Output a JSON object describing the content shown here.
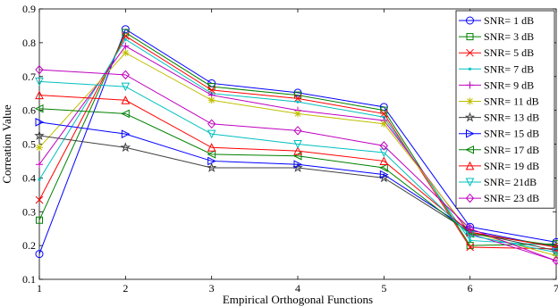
{
  "chart_data": {
    "type": "line",
    "title": "",
    "xlabel": "Empirical Orthogonal Functions",
    "ylabel": "Correation Value",
    "x": [
      1,
      2,
      3,
      4,
      5,
      6,
      7
    ],
    "xlim": [
      1,
      7
    ],
    "ylim": [
      0.1,
      0.9
    ],
    "xticks": [
      "1",
      "2",
      "3",
      "4",
      "5",
      "6",
      "7"
    ],
    "yticks": [
      "0.1",
      "0.2",
      "0.3",
      "0.4",
      "0.5",
      "0.6",
      "0.7",
      "0.8",
      "0.9"
    ],
    "grid": false,
    "legend_position": "top-right",
    "series": [
      {
        "name": "SNR= 1 dB",
        "color": "#0000ff",
        "marker": "circle",
        "values": [
          0.175,
          0.84,
          0.68,
          0.652,
          0.61,
          0.255,
          0.21
        ]
      },
      {
        "name": "SNR= 3 dB",
        "color": "#008000",
        "marker": "square",
        "values": [
          0.275,
          0.83,
          0.67,
          0.645,
          0.6,
          0.2,
          0.205
        ]
      },
      {
        "name": "SNR= 5 dB",
        "color": "#ff0000",
        "marker": "x",
        "values": [
          0.335,
          0.82,
          0.66,
          0.635,
          0.59,
          0.195,
          0.19
        ]
      },
      {
        "name": "SNR= 7 dB",
        "color": "#00bfbf",
        "marker": "point",
        "values": [
          0.395,
          0.81,
          0.65,
          0.625,
          0.58,
          0.215,
          0.2
        ]
      },
      {
        "name": "SNR= 9 dB",
        "color": "#bf00bf",
        "marker": "plus",
        "values": [
          0.44,
          0.79,
          0.645,
          0.6,
          0.57,
          0.235,
          0.155
        ]
      },
      {
        "name": "SNR= 11 dB",
        "color": "#bfbf00",
        "marker": "asterisk",
        "values": [
          0.49,
          0.77,
          0.63,
          0.59,
          0.56,
          0.24,
          0.17
        ]
      },
      {
        "name": "SNR= 13 dB",
        "color": "#404040",
        "marker": "star",
        "values": [
          0.525,
          0.49,
          0.43,
          0.43,
          0.4,
          0.24,
          0.185
        ]
      },
      {
        "name": "SNR= 15 dB",
        "color": "#0000ff",
        "marker": "triangle-right",
        "values": [
          0.565,
          0.53,
          0.45,
          0.44,
          0.41,
          0.245,
          0.195
        ]
      },
      {
        "name": "SNR= 17 dB",
        "color": "#008000",
        "marker": "triangle-left",
        "values": [
          0.605,
          0.59,
          0.47,
          0.465,
          0.43,
          0.235,
          0.2
        ]
      },
      {
        "name": "SNR= 19 dB",
        "color": "#ff0000",
        "marker": "triangle-up",
        "values": [
          0.645,
          0.63,
          0.49,
          0.48,
          0.45,
          0.24,
          0.195
        ]
      },
      {
        "name": "SNR= 21dB",
        "color": "#00bfbf",
        "marker": "triangle-down",
        "values": [
          0.685,
          0.67,
          0.53,
          0.5,
          0.475,
          0.23,
          0.18
        ]
      },
      {
        "name": "SNR= 23 dB",
        "color": "#bf00bf",
        "marker": "diamond",
        "values": [
          0.72,
          0.705,
          0.56,
          0.54,
          0.495,
          0.25,
          0.155
        ]
      }
    ]
  }
}
